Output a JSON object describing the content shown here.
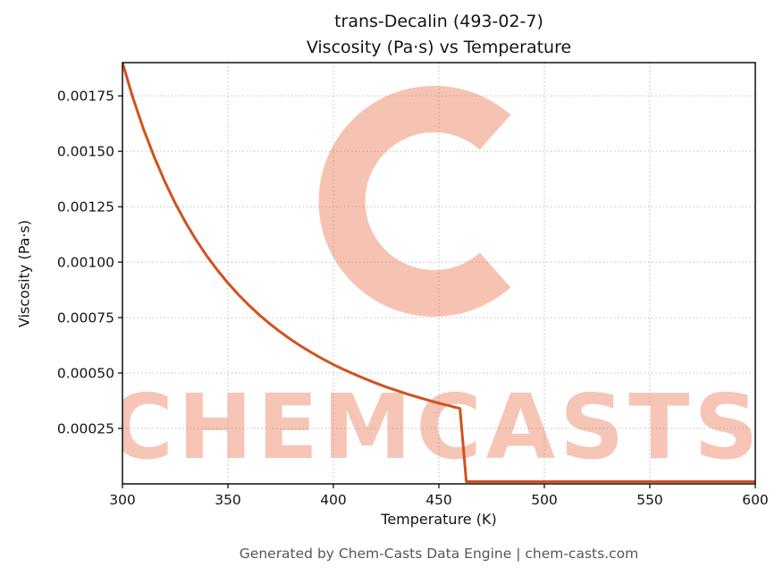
{
  "chart_data": {
    "type": "line",
    "title": "trans-Decalin (493-02-7)\nViscosity (Pa·s) vs Temperature",
    "title_lines": [
      "trans-Decalin (493-02-7)",
      "Viscosity (Pa·s) vs Temperature"
    ],
    "xlabel": "Temperature (K)",
    "ylabel": "Viscosity (Pa·s)",
    "xlim": [
      300,
      600
    ],
    "ylim": [
      0,
      0.0019
    ],
    "x_ticks": [
      300,
      350,
      400,
      450,
      500,
      550,
      600
    ],
    "x_tick_labels": [
      "300",
      "350",
      "400",
      "450",
      "500",
      "550",
      "600"
    ],
    "y_ticks": [
      0.00025,
      0.0005,
      0.00075,
      0.001,
      0.00125,
      0.0015,
      0.00175
    ],
    "y_tick_labels": [
      "0.00025",
      "0.00050",
      "0.00075",
      "0.00100",
      "0.00125",
      "0.00150",
      "0.00175"
    ],
    "grid": true,
    "legend_position": "none",
    "line_color": "#d2521e",
    "series": [
      {
        "name": "Viscosity (Pa·s)",
        "x": [
          300,
          305,
          310,
          315,
          320,
          325,
          330,
          335,
          340,
          345,
          350,
          355,
          360,
          365,
          370,
          375,
          380,
          385,
          390,
          395,
          400,
          405,
          410,
          415,
          420,
          425,
          430,
          435,
          440,
          445,
          450,
          455,
          460,
          463,
          470,
          480,
          490,
          500,
          510,
          520,
          530,
          540,
          550,
          560,
          570,
          580,
          590,
          600
        ],
        "y": [
          0.0019,
          0.00174,
          0.0016,
          0.001476,
          0.001365,
          0.001266,
          0.001178,
          0.001099,
          0.001028,
          0.000964,
          0.000906,
          0.000853,
          0.000805,
          0.000761,
          0.000721,
          0.000684,
          0.00065,
          0.000619,
          0.00059,
          0.000563,
          0.000538,
          0.000515,
          0.000494,
          0.000474,
          0.000455,
          0.000437,
          0.000421,
          0.000405,
          0.000391,
          0.000377,
          0.000364,
          0.000352,
          0.00034,
          1e-05,
          1e-05,
          1e-05,
          1e-05,
          1e-05,
          1e-05,
          1e-05,
          1e-05,
          1e-05,
          1e-05,
          1e-05,
          1e-05,
          1e-05,
          1e-05,
          1e-05
        ]
      }
    ]
  },
  "watermark": {
    "text": "CHEMCASTS",
    "logo": "c-ring-logo",
    "color": "#e86840"
  },
  "footer": {
    "text": "Generated by Chem-Casts Data Engine | chem-casts.com"
  }
}
